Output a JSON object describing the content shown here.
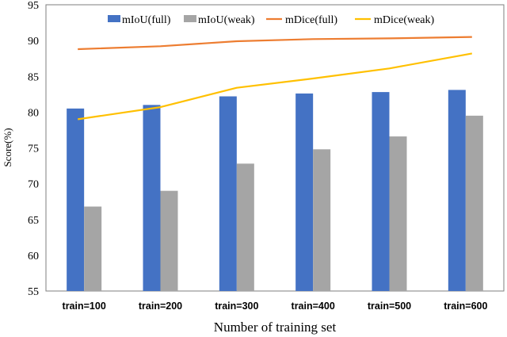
{
  "chart_data": {
    "type": "bar",
    "title": "",
    "xlabel": "Number of training set",
    "ylabel": "Score(%)",
    "ylim": [
      55,
      95
    ],
    "yticks": [
      55,
      60,
      65,
      70,
      75,
      80,
      85,
      90,
      95
    ],
    "grid": false,
    "legend_position": "top",
    "categories": [
      "train=100",
      "train=200",
      "train=300",
      "train=400",
      "train=500",
      "train=600"
    ],
    "series": [
      {
        "name": "mIoU(full)",
        "kind": "bar",
        "color": "#4472C4",
        "values": [
          80.5,
          81.0,
          82.2,
          82.6,
          82.8,
          83.1
        ]
      },
      {
        "name": "mIoU(weak)",
        "kind": "bar",
        "color": "#A5A5A5",
        "values": [
          66.8,
          69.0,
          72.8,
          74.8,
          76.6,
          79.5
        ]
      },
      {
        "name": "mDice(full)",
        "kind": "line",
        "color": "#ED7D31",
        "values": [
          88.8,
          89.2,
          89.9,
          90.2,
          90.3,
          90.5
        ]
      },
      {
        "name": "mDice(weak)",
        "kind": "line",
        "color": "#FFC000",
        "values": [
          79.0,
          80.7,
          83.4,
          84.7,
          86.1,
          88.2
        ]
      }
    ]
  }
}
